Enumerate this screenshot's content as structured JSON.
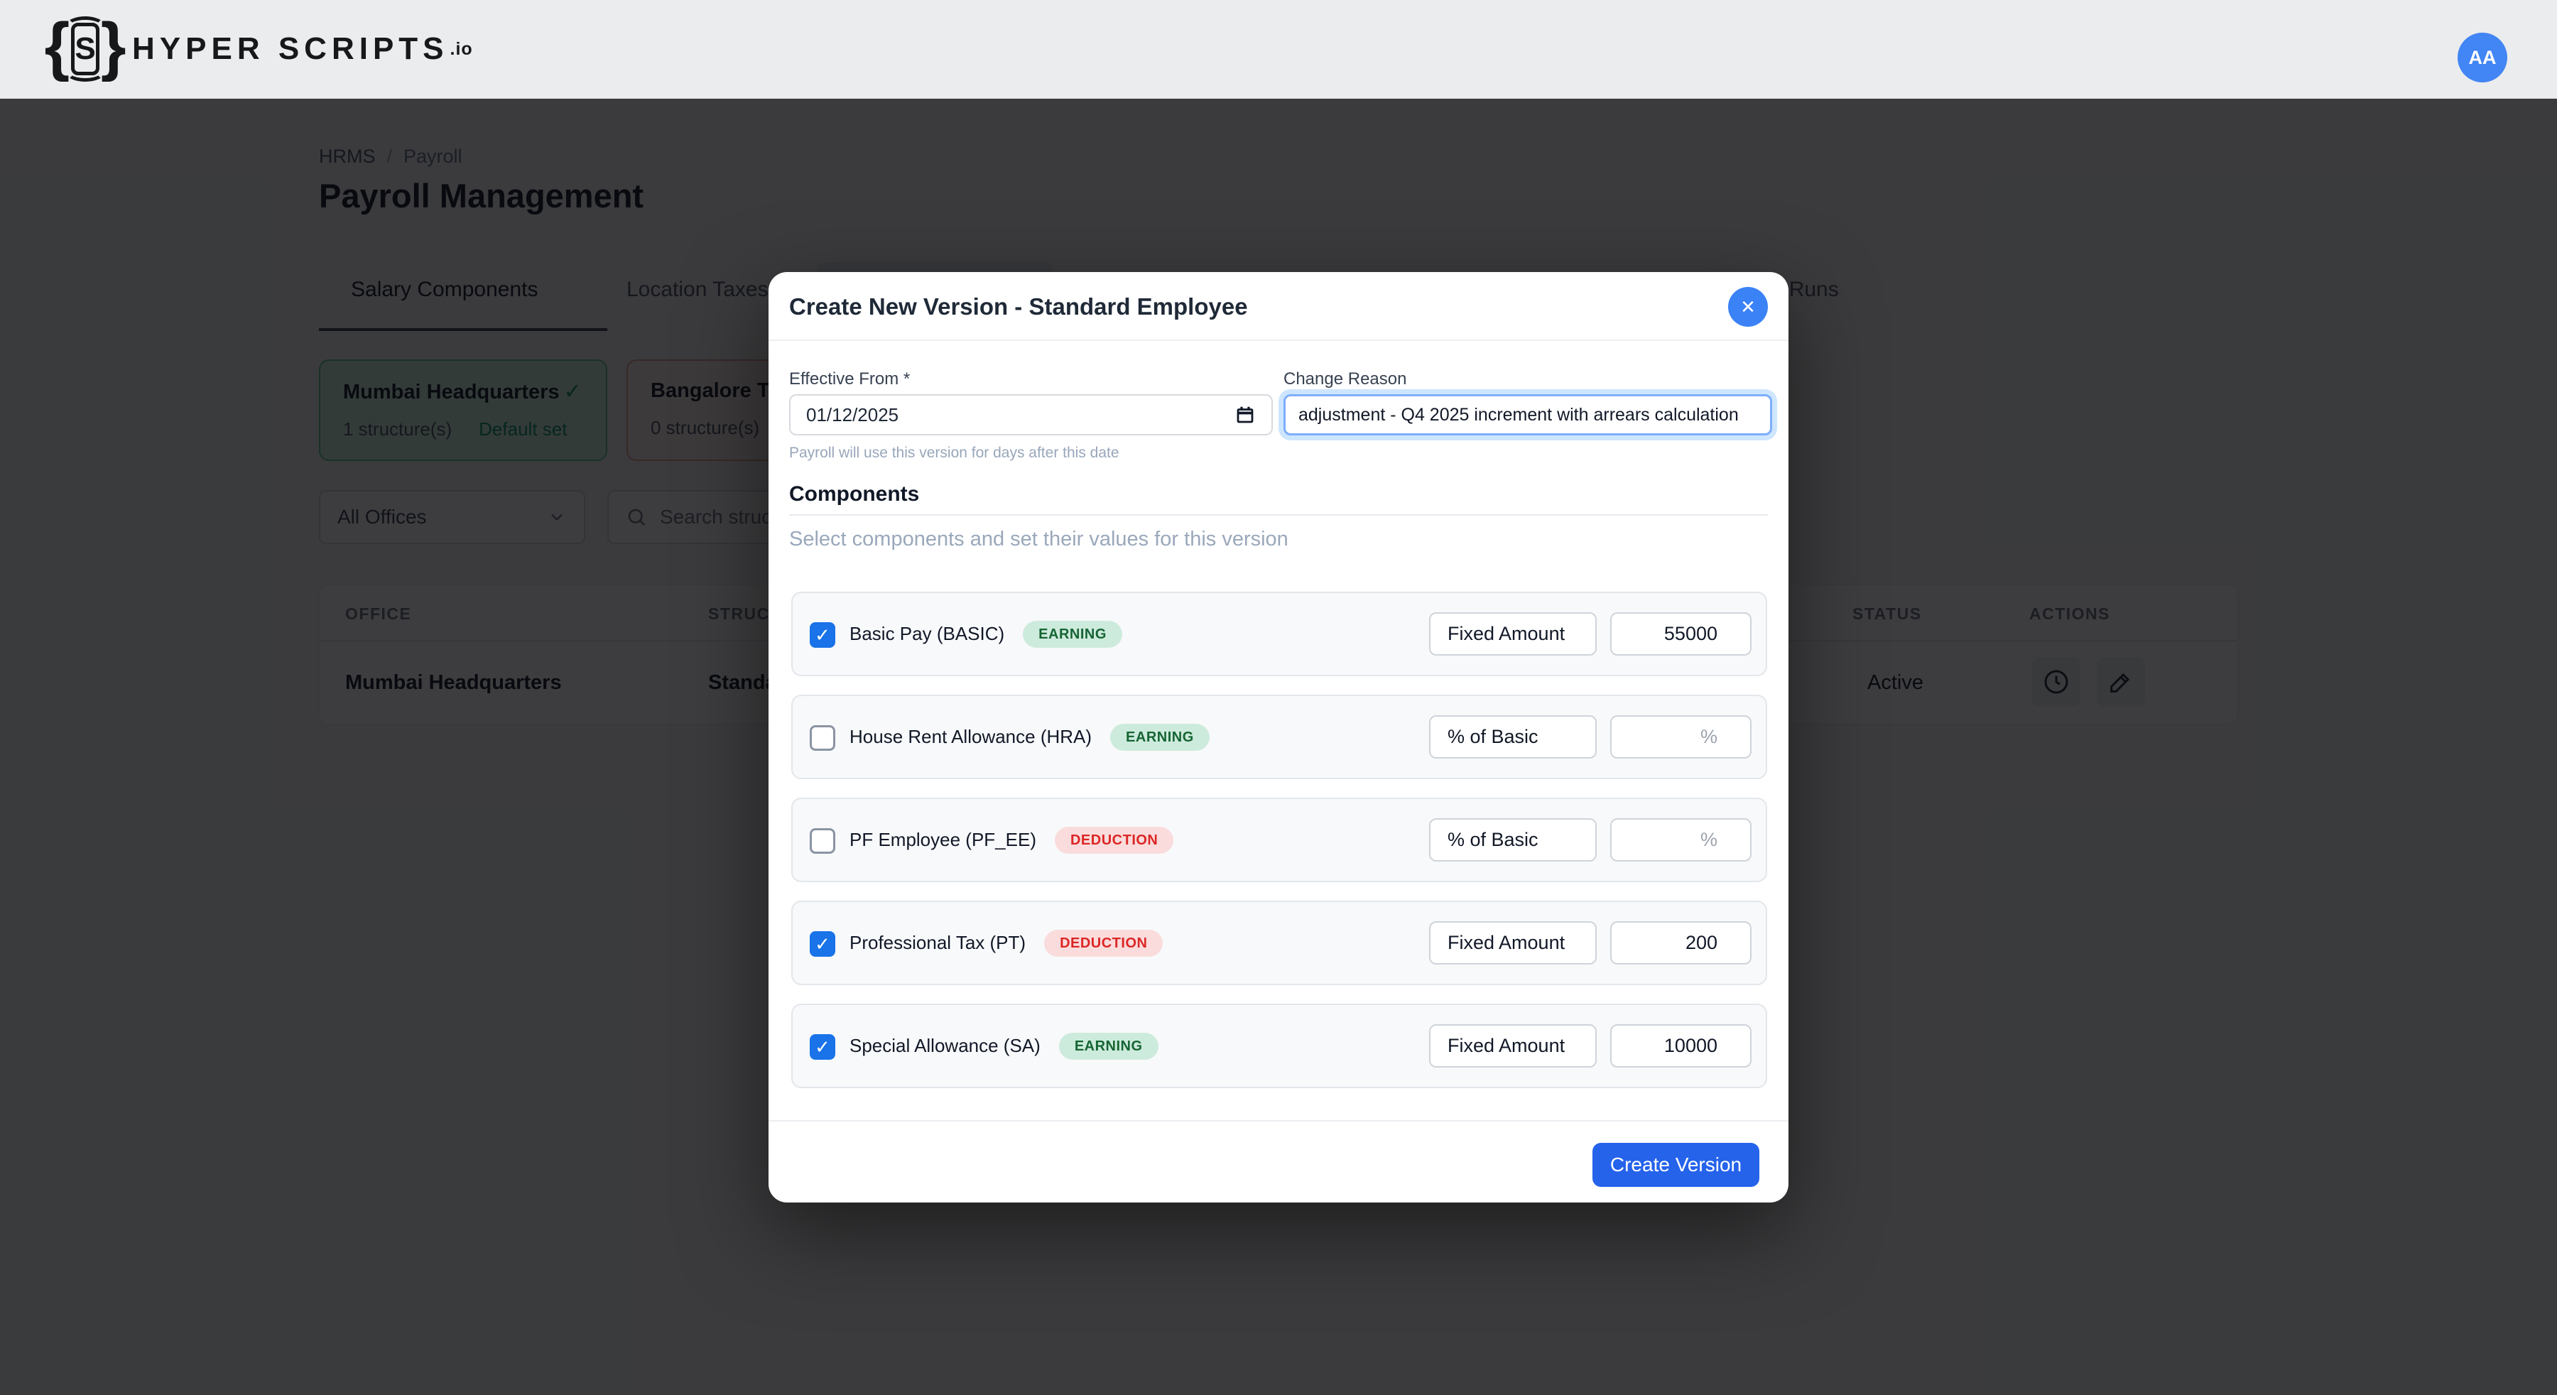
{
  "brand": {
    "brace_left": "{",
    "monogram": "S",
    "brace_right": "}",
    "wordmark": "HYPER SCRIPTS",
    "tld": ".io",
    "avatar": "AA"
  },
  "breadcrumb": {
    "root": "HRMS",
    "separator": "/",
    "current": "Payroll"
  },
  "page": {
    "title": "Payroll Management"
  },
  "tabs": {
    "salary_components": "Salary Components",
    "location_taxes": "Location Taxes",
    "runs_fragment": "ed Runs"
  },
  "offices": {
    "mumbai": {
      "name": "Mumbai Headquarters",
      "check": "✓",
      "count": "1 structure(s)",
      "default_label": "Default set"
    },
    "bangalore": {
      "name": "Bangalore Te",
      "count": "0 structure(s)"
    }
  },
  "filters": {
    "office_select": "All Offices",
    "search_placeholder": "Search struct"
  },
  "table": {
    "headers": {
      "office": "OFFICE",
      "structure": "STRUC",
      "status": "STATUS",
      "actions": "ACTIONS"
    },
    "row": {
      "office": "Mumbai Headquarters",
      "structure": "Standa",
      "status": "Active"
    }
  },
  "modal": {
    "title": "Create New Version - Standard Employee",
    "close_glyph": "✕",
    "effective_from": {
      "label": "Effective From *",
      "value": "01/12/2025",
      "help": "Payroll will use this version for days after this date"
    },
    "change_reason": {
      "label": "Change Reason",
      "value": "adjustment - Q4 2025 increment with arrears calculation"
    },
    "components_heading": "Components",
    "components_hint": "Select components and set their values for this version",
    "components": [
      {
        "label": "Basic Pay (BASIC)",
        "type": "EARNING",
        "checked": true,
        "method": "Fixed Amount",
        "value": "55000",
        "placeholder": ""
      },
      {
        "label": "House Rent Allowance (HRA)",
        "type": "EARNING",
        "checked": false,
        "method": "% of Basic",
        "value": "",
        "placeholder": "%"
      },
      {
        "label": "PF Employee (PF_EE)",
        "type": "DEDUCTION",
        "checked": false,
        "method": "% of Basic",
        "value": "",
        "placeholder": "%"
      },
      {
        "label": "Professional Tax (PT)",
        "type": "DEDUCTION",
        "checked": true,
        "method": "Fixed Amount",
        "value": "200",
        "placeholder": ""
      },
      {
        "label": "Special Allowance (SA)",
        "type": "EARNING",
        "checked": true,
        "method": "Fixed Amount",
        "value": "10000",
        "placeholder": ""
      }
    ],
    "create_button": "Create Version"
  },
  "icons": {
    "check": "✓",
    "chevron_down": "⌄",
    "close": "✕"
  },
  "colors": {
    "accent_blue": "#2563eb",
    "close_blue": "#3b82f6",
    "checkbox_blue": "#1a73e8",
    "earning_bg": "#cdebdc",
    "earning_text": "#166534",
    "deduction_bg": "#fadcdc",
    "deduction_text": "#dc2626",
    "success_green": "#059669",
    "overlay": "rgba(6,7,9,0.78)"
  }
}
